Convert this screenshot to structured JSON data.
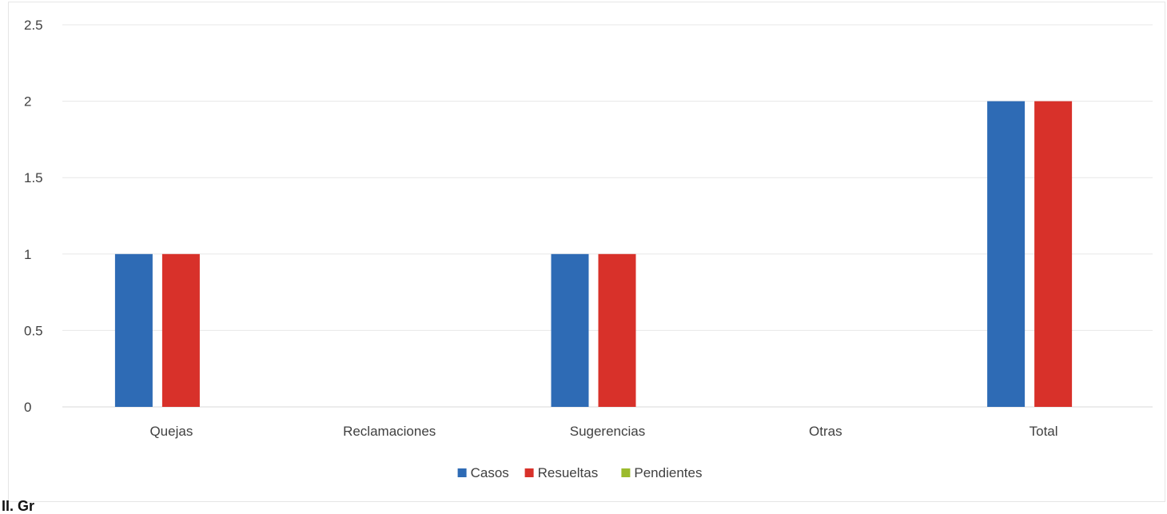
{
  "chart_data": {
    "type": "bar",
    "title": "",
    "xlabel": "",
    "ylabel": "",
    "categories": [
      "Quejas",
      "Reclamaciones",
      "Sugerencias",
      "Otras",
      "Total"
    ],
    "series": [
      {
        "name": "Casos",
        "color": "#2e6bb5",
        "values": [
          1,
          0,
          1,
          0,
          2
        ]
      },
      {
        "name": "Resueltas",
        "color": "#d8312a",
        "values": [
          1,
          0,
          1,
          0,
          2
        ]
      },
      {
        "name": "Pendientes",
        "color": "#9bbb2d",
        "values": [
          0,
          0,
          0,
          0,
          0
        ]
      }
    ],
    "ylim": [
      0,
      2.5
    ],
    "yticks": [
      "0",
      "0.5",
      "1",
      "1.5",
      "2",
      "2.5"
    ],
    "grid": true,
    "legend_position": "bottom"
  },
  "footer_fragment": "II. Gr"
}
